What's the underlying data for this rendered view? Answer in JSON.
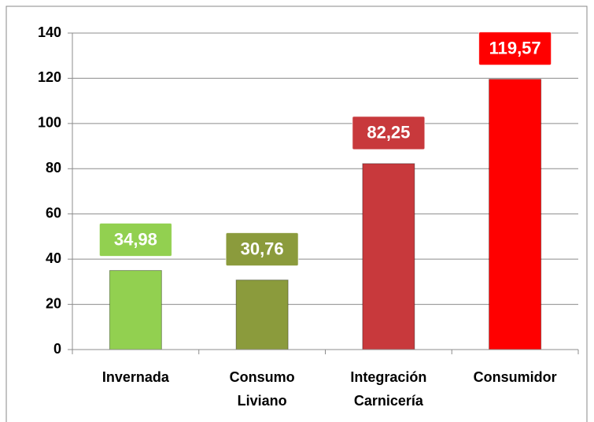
{
  "chart_data": {
    "type": "bar",
    "categories": [
      "Invernada",
      "Consumo Liviano",
      "Integración Carnicería",
      "Consumidor"
    ],
    "values": [
      34.98,
      30.76,
      82.25,
      119.57
    ],
    "value_labels": [
      "34,98",
      "30,76",
      "82,25",
      "119,57"
    ],
    "colors": [
      "#92d050",
      "#8b9b3c",
      "#c8393c",
      "#ff0000"
    ],
    "ylim": [
      0,
      140
    ],
    "yticks": [
      0,
      20,
      40,
      60,
      80,
      100,
      120,
      140
    ],
    "grid": true
  }
}
